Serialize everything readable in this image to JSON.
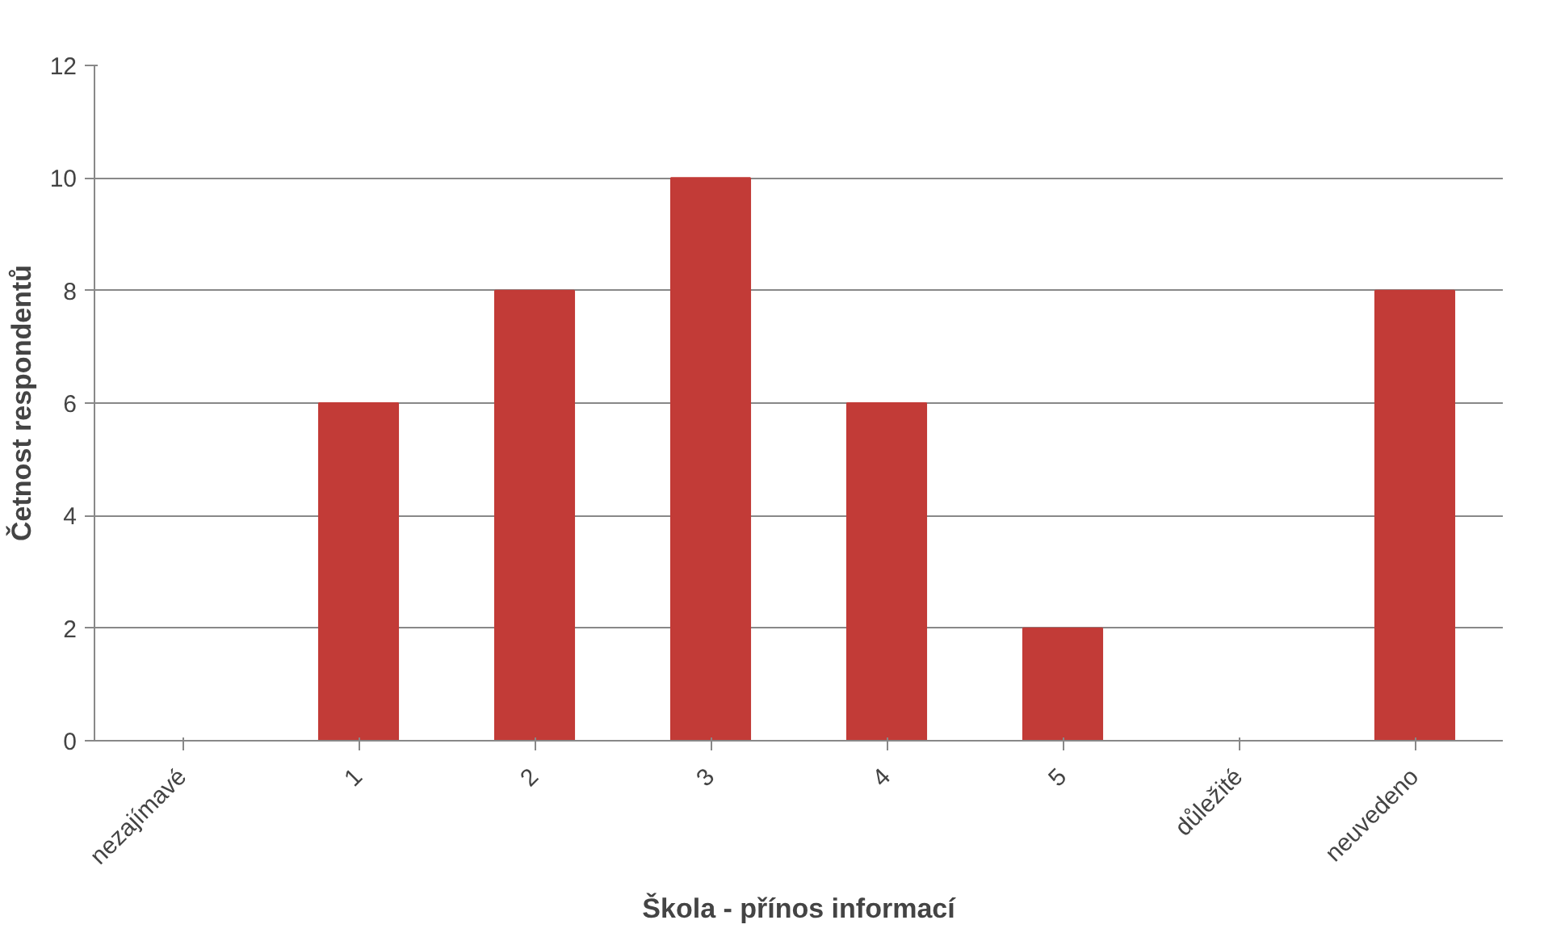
{
  "chart_data": {
    "type": "bar",
    "xlabel": "Škola - přínos informací",
    "ylabel": "Četnost respondentů",
    "categories": [
      "nezajímavé",
      "1",
      "2",
      "3",
      "4",
      "5",
      "důležité",
      "neuvedeno"
    ],
    "values": [
      0,
      6,
      8,
      10,
      6,
      2,
      0,
      8
    ],
    "color": "#c23b37",
    "ylim": [
      0,
      12
    ],
    "yticks": [
      0,
      2,
      4,
      6,
      8,
      10,
      12
    ],
    "grid": "y"
  }
}
